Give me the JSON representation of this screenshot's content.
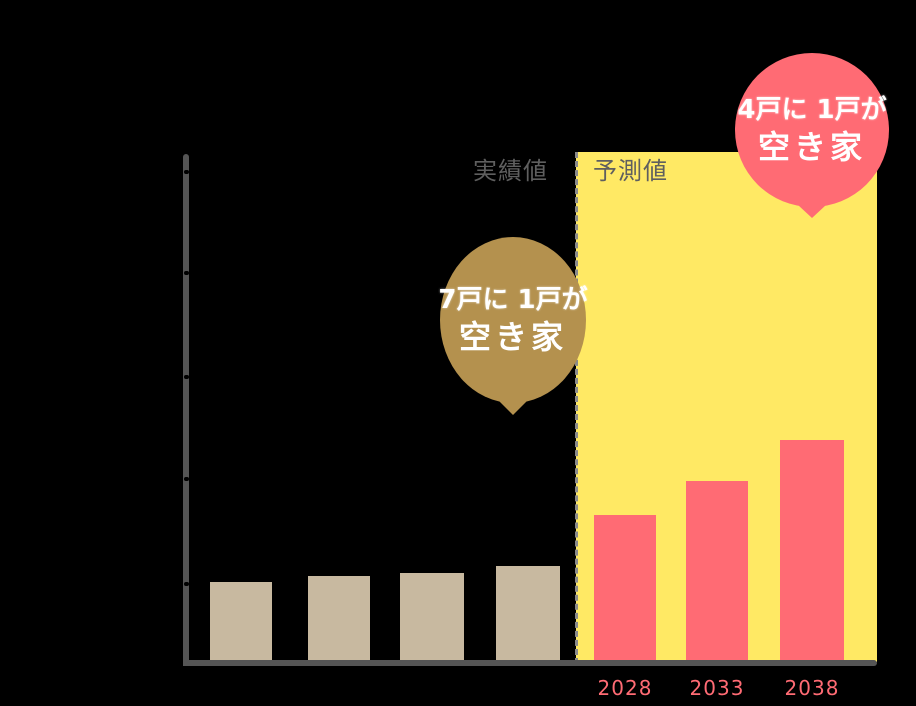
{
  "colors": {
    "background": "#000000",
    "actual_bar": "#C8B9A0",
    "forecast_bar": "#FF6B74",
    "forecast_region": "#FFE964",
    "axis": "#555555",
    "label_text": "#5F5F5F",
    "callout_actual": "#B4914E",
    "callout_forecast": "#FF6B74"
  },
  "sections": {
    "actual_label": "実績値",
    "forecast_label": "予測値"
  },
  "callouts": {
    "actual": {
      "line1": "7戸に 1戸が",
      "line2": "空き家"
    },
    "forecast": {
      "line1": "4戸に 1戸が",
      "line2": "空き家"
    }
  },
  "x_labels": [
    "",
    "",
    "",
    "",
    "2028",
    "2033",
    "2038"
  ],
  "chart_data": {
    "type": "bar",
    "title": "",
    "xlabel": "",
    "ylabel": "",
    "categories": [
      "",
      "",
      "",
      "",
      "2028",
      "2033",
      "2038"
    ],
    "series": [
      {
        "name": "実績値",
        "values": [
          15.3,
          16.5,
          17.1,
          18.5,
          null,
          null,
          null
        ]
      },
      {
        "name": "予測値",
        "values": [
          null,
          null,
          null,
          null,
          28.5,
          35.0,
          43.1
        ]
      }
    ],
    "value_units": "relative bar height (% of y-axis scale, est.)",
    "y_ticks_count": 5,
    "y_tick_labels": [],
    "grid": false,
    "annotations": [
      {
        "target": "last actual bar",
        "text": "7戸に 1戸が 空き家"
      },
      {
        "target": "2038",
        "text": "4戸に 1戸が 空き家"
      }
    ],
    "regions": [
      {
        "label": "実績値",
        "range": "bars 1-4"
      },
      {
        "label": "予測値",
        "range": "2028-2038",
        "highlight": "#FFE964"
      }
    ]
  }
}
